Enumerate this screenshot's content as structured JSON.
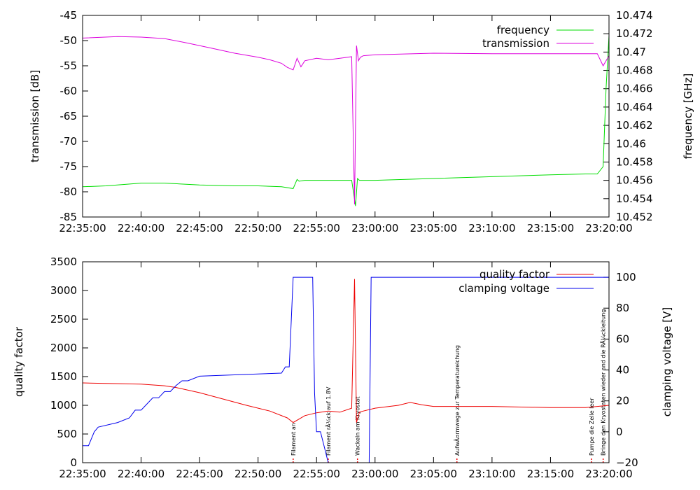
{
  "chart_data": [
    {
      "type": "line",
      "x_ticks": [
        "22:35:00",
        "22:40:00",
        "22:45:00",
        "22:50:00",
        "22:55:00",
        "23:00:00",
        "23:05:00",
        "23:10:00",
        "23:15:00",
        "23:20:00"
      ],
      "xlim": [
        "22:35:00",
        "23:20:00"
      ],
      "ylabel": "transmission [dB]",
      "ylim": [
        -85,
        -45
      ],
      "y_ticks": [
        "-45",
        "-50",
        "-55",
        "-60",
        "-65",
        "-70",
        "-75",
        "-80",
        "-85"
      ],
      "y2label": "frequency [GHz]",
      "y2lim": [
        10.452,
        10.474
      ],
      "y2_ticks": [
        "10.474",
        "10.472",
        "10.47",
        "10.468",
        "10.466",
        "10.464",
        "10.462",
        "10.46",
        "10.458",
        "10.456",
        "10.454",
        "10.452"
      ],
      "legend_position": "top-right",
      "colors": {
        "frequency": "#00dd00",
        "transmission": "#dd00dd"
      },
      "series": [
        {
          "name": "frequency",
          "axis": "y2",
          "x": [
            "22:35:00",
            "22:37:00",
            "22:40:00",
            "22:42:00",
            "22:45:00",
            "22:48:00",
            "22:50:00",
            "22:52:00",
            "22:53:00",
            "22:53:20",
            "22:53:30",
            "22:54:00",
            "22:56:00",
            "22:58:00",
            "22:58:20",
            "22:58:30",
            "22:58:40",
            "23:00:00",
            "23:05:00",
            "23:10:00",
            "23:15:00",
            "23:18:00",
            "23:19:00",
            "23:19:30",
            "23:19:45",
            "23:20:00"
          ],
          "values": [
            10.4553,
            10.4554,
            10.4557,
            10.4557,
            10.4555,
            10.4554,
            10.4554,
            10.4553,
            10.4551,
            10.4561,
            10.4559,
            10.456,
            10.456,
            10.456,
            10.4532,
            10.4562,
            10.456,
            10.456,
            10.4562,
            10.4564,
            10.4566,
            10.4567,
            10.4567,
            10.4575,
            10.466,
            10.4718
          ]
        },
        {
          "name": "transmission",
          "axis": "y",
          "x": [
            "22:35:00",
            "22:38:00",
            "22:40:00",
            "22:42:00",
            "22:44:00",
            "22:46:00",
            "22:48:00",
            "22:50:00",
            "22:51:00",
            "22:52:00",
            "22:52:30",
            "22:53:00",
            "22:53:20",
            "22:53:40",
            "22:54:00",
            "22:55:00",
            "22:56:00",
            "22:57:00",
            "22:58:00",
            "22:58:15",
            "22:58:25",
            "22:58:35",
            "22:58:45",
            "22:59:00",
            "23:00:00",
            "23:05:00",
            "23:10:00",
            "23:15:00",
            "23:19:00",
            "23:19:30",
            "23:20:00"
          ],
          "values": [
            -49.5,
            -49.2,
            -49.3,
            -49.6,
            -50.5,
            -51.5,
            -52.5,
            -53.3,
            -53.8,
            -54.5,
            -55.3,
            -55.8,
            -53.5,
            -55.2,
            -54,
            -53.5,
            -53.8,
            -53.5,
            -53.2,
            -82.5,
            -51,
            -54,
            -53.3,
            -53,
            -52.8,
            -52.5,
            -52.6,
            -52.6,
            -52.6,
            -55,
            -53
          ]
        }
      ]
    },
    {
      "type": "line",
      "x_ticks": [
        "22:35:00",
        "22:40:00",
        "22:45:00",
        "22:50:00",
        "22:55:00",
        "23:00:00",
        "23:05:00",
        "23:10:00",
        "23:15:00",
        "23:20:00"
      ],
      "xlim": [
        "22:35:00",
        "23:20:00"
      ],
      "ylabel": "quality factor",
      "ylim": [
        0,
        3500
      ],
      "y_ticks": [
        "3500",
        "3000",
        "2500",
        "2000",
        "1500",
        "1000",
        "500",
        "0"
      ],
      "y2label": "clamping voltage [V]",
      "y2lim": [
        -20,
        110
      ],
      "y2_ticks": [
        "100",
        "80",
        "60",
        "40",
        "20",
        "0",
        "−20"
      ],
      "legend_position": "top-right",
      "colors": {
        "quality factor": "#ee0000",
        "clamping voltage": "#0000ee",
        "annotation": "#ee0000"
      },
      "series": [
        {
          "name": "quality factor",
          "axis": "y",
          "x": [
            "22:35:00",
            "22:37:00",
            "22:40:00",
            "22:42:00",
            "22:43:00",
            "22:45:00",
            "22:47:00",
            "22:49:00",
            "22:51:00",
            "22:52:30",
            "22:53:00",
            "22:54:00",
            "22:55:00",
            "22:56:00",
            "22:57:00",
            "22:58:00",
            "22:58:15",
            "22:58:25",
            "22:58:40",
            "22:59:00",
            "23:00:00",
            "23:02:00",
            "23:03:00",
            "23:04:00",
            "23:05:00",
            "23:10:00",
            "23:15:00",
            "23:18:00",
            "23:20:00"
          ],
          "values": [
            1390,
            1380,
            1370,
            1340,
            1310,
            1220,
            1110,
            1000,
            900,
            780,
            700,
            820,
            870,
            900,
            880,
            950,
            3200,
            700,
            880,
            900,
            950,
            1000,
            1050,
            1010,
            980,
            980,
            960,
            960,
            1000
          ]
        },
        {
          "name": "clamping voltage",
          "axis": "y2",
          "x": [
            "22:35:00",
            "22:35:00",
            "22:35:30",
            "22:36:00",
            "22:36:20",
            "22:38:00",
            "22:39:00",
            "22:39:30",
            "22:40:00",
            "22:41:00",
            "22:41:30",
            "22:42:00",
            "22:42:30",
            "22:43:00",
            "22:43:30",
            "22:44:00",
            "22:45:00",
            "22:45:00",
            "22:52:00",
            "22:52:20",
            "22:52:40",
            "22:53:00",
            "22:53:30",
            "22:54:40",
            "22:54:50",
            "22:55:00",
            "22:55:20",
            "22:55:40",
            "22:56:00",
            "22:57:00",
            "22:58:00",
            "22:59:00",
            "22:59:30",
            "22:59:40",
            "22:59:50",
            "23:00:00",
            "23:20:00"
          ],
          "values": [
            -20,
            -9,
            -9,
            0,
            3,
            6,
            9,
            14,
            14,
            22,
            22,
            26,
            26,
            30,
            33,
            33,
            36,
            36,
            38,
            42,
            42,
            100,
            100,
            100,
            25,
            0,
            0,
            -10,
            -20,
            -20,
            -20,
            -20,
            -20,
            100,
            100,
            100,
            100
          ]
        }
      ],
      "annotations": [
        {
          "x": "22:53:00",
          "label": "Filament an"
        },
        {
          "x": "22:56:00",
          "label": "Filament rÃ¼ck auf 1.8V"
        },
        {
          "x": "22:58:30",
          "label": "Wackeln am Kryostat"
        },
        {
          "x": "23:07:00",
          "label": "AufwÃ¤rmwege zur Temperatureichung"
        },
        {
          "x": "23:18:30",
          "label": "Pumpe die Zelle leer"
        },
        {
          "x": "23:19:30",
          "label": "Bringe den Kryostaten wieder and die RÃ¼ckleitung"
        }
      ]
    }
  ]
}
